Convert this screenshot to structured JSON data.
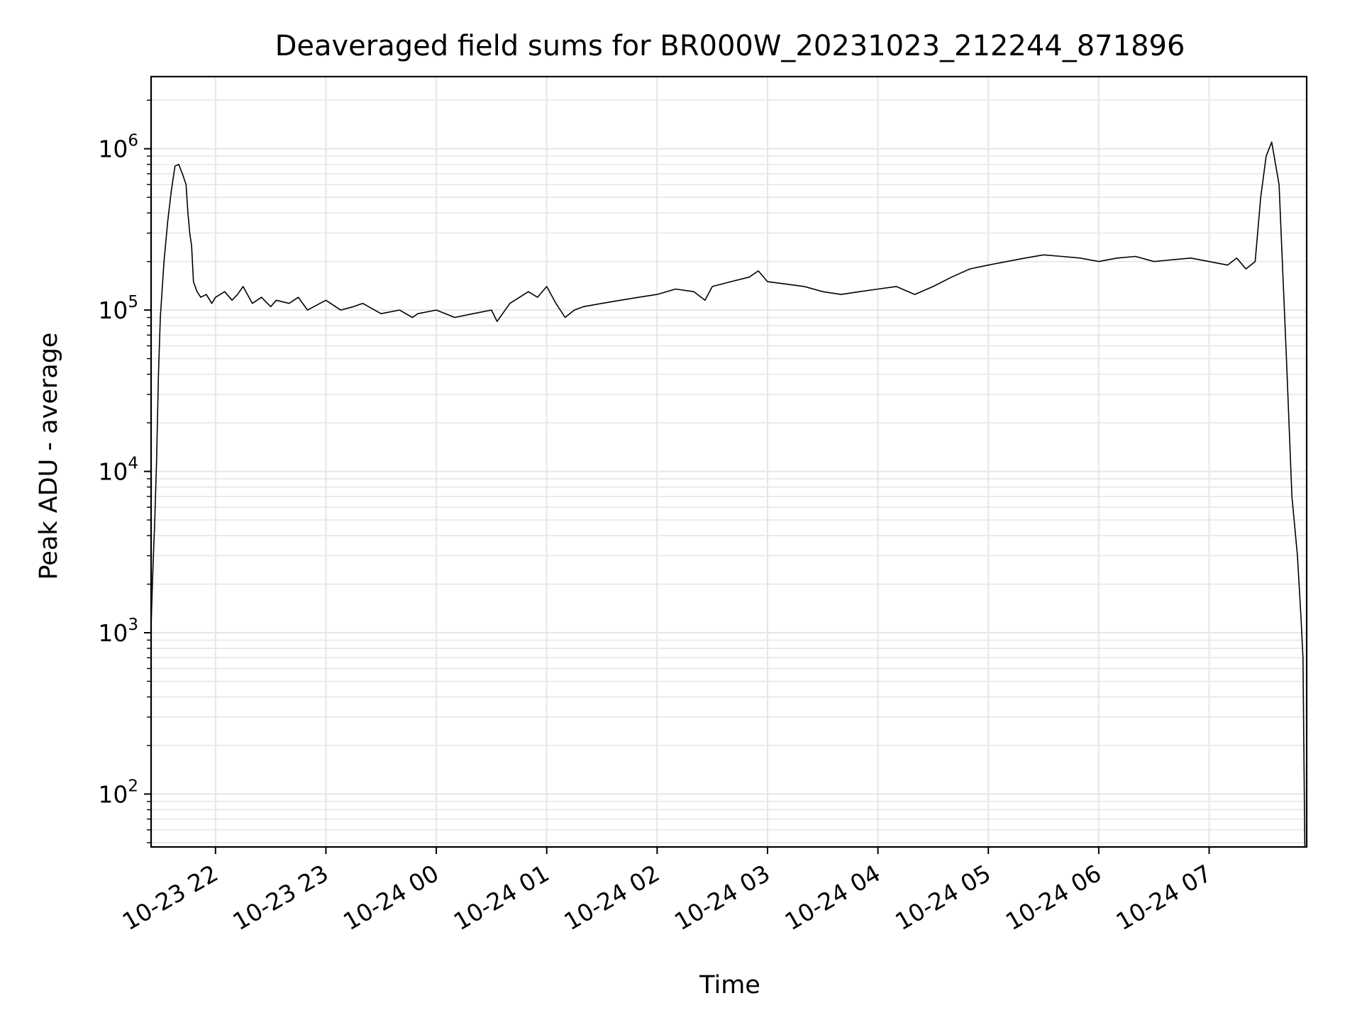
{
  "chart_data": {
    "type": "line",
    "title": "Deaveraged field sums for BR000W_20231023_212244_871896",
    "xlabel": "Time",
    "ylabel": "Peak ADU - average",
    "y_scale": "log",
    "ylim": [
      47,
      2800000
    ],
    "xlim": [
      "2023-10-23 21:25",
      "2023-10-24 07:53"
    ],
    "grid": true,
    "grid_color": "#e6e6e6",
    "line_color": "#000000",
    "x_ticks": [
      {
        "t": "2023-10-23 22:00",
        "label": "10-23 22"
      },
      {
        "t": "2023-10-23 23:00",
        "label": "10-23 23"
      },
      {
        "t": "2023-10-24 00:00",
        "label": "10-24 00"
      },
      {
        "t": "2023-10-24 01:00",
        "label": "10-24 01"
      },
      {
        "t": "2023-10-24 02:00",
        "label": "10-24 02"
      },
      {
        "t": "2023-10-24 03:00",
        "label": "10-24 03"
      },
      {
        "t": "2023-10-24 04:00",
        "label": "10-24 04"
      },
      {
        "t": "2023-10-24 05:00",
        "label": "10-24 05"
      },
      {
        "t": "2023-10-24 06:00",
        "label": "10-24 06"
      },
      {
        "t": "2023-10-24 07:00",
        "label": "10-24 07"
      }
    ],
    "y_ticks": [
      {
        "value": 100,
        "base": "10",
        "exp": "2"
      },
      {
        "value": 1000,
        "base": "10",
        "exp": "3"
      },
      {
        "value": 10000,
        "base": "10",
        "exp": "4"
      },
      {
        "value": 100000,
        "base": "10",
        "exp": "5"
      },
      {
        "value": 1000000,
        "base": "10",
        "exp": "6"
      }
    ],
    "series": [
      {
        "x": [
          "2023-10-23 21:25",
          "2023-10-23 21:26",
          "2023-10-23 21:27",
          "2023-10-23 21:28",
          "2023-10-23 21:29",
          "2023-10-23 21:30",
          "2023-10-23 21:32",
          "2023-10-23 21:34",
          "2023-10-23 21:36",
          "2023-10-23 21:38",
          "2023-10-23 21:40",
          "2023-10-23 21:42",
          "2023-10-23 21:44",
          "2023-10-23 21:45",
          "2023-10-23 21:46",
          "2023-10-23 21:47",
          "2023-10-23 21:48",
          "2023-10-23 21:50",
          "2023-10-23 21:52",
          "2023-10-23 21:55",
          "2023-10-23 21:58",
          "2023-10-23 22:00",
          "2023-10-23 22:05",
          "2023-10-23 22:09",
          "2023-10-23 22:12",
          "2023-10-23 22:15",
          "2023-10-23 22:20",
          "2023-10-23 22:25",
          "2023-10-23 22:30",
          "2023-10-23 22:33",
          "2023-10-23 22:40",
          "2023-10-23 22:45",
          "2023-10-23 22:50",
          "2023-10-23 23:00",
          "2023-10-23 23:08",
          "2023-10-23 23:15",
          "2023-10-23 23:20",
          "2023-10-23 23:30",
          "2023-10-23 23:40",
          "2023-10-23 23:47",
          "2023-10-23 23:50",
          "2023-10-24 00:00",
          "2023-10-24 00:10",
          "2023-10-24 00:20",
          "2023-10-24 00:30",
          "2023-10-24 00:33",
          "2023-10-24 00:40",
          "2023-10-24 00:50",
          "2023-10-24 00:55",
          "2023-10-24 01:00",
          "2023-10-24 01:05",
          "2023-10-24 01:10",
          "2023-10-24 01:15",
          "2023-10-24 01:20",
          "2023-10-24 01:30",
          "2023-10-24 01:40",
          "2023-10-24 01:50",
          "2023-10-24 02:00",
          "2023-10-24 02:10",
          "2023-10-24 02:20",
          "2023-10-24 02:26",
          "2023-10-24 02:30",
          "2023-10-24 02:40",
          "2023-10-24 02:50",
          "2023-10-24 02:55",
          "2023-10-24 03:00",
          "2023-10-24 03:10",
          "2023-10-24 03:20",
          "2023-10-24 03:30",
          "2023-10-24 03:40",
          "2023-10-24 03:50",
          "2023-10-24 04:00",
          "2023-10-24 04:10",
          "2023-10-24 04:20",
          "2023-10-24 04:30",
          "2023-10-24 04:40",
          "2023-10-24 04:50",
          "2023-10-24 05:00",
          "2023-10-24 05:10",
          "2023-10-24 05:20",
          "2023-10-24 05:30",
          "2023-10-24 05:40",
          "2023-10-24 05:50",
          "2023-10-24 06:00",
          "2023-10-24 06:10",
          "2023-10-24 06:20",
          "2023-10-24 06:30",
          "2023-10-24 06:40",
          "2023-10-24 06:50",
          "2023-10-24 07:00",
          "2023-10-24 07:10",
          "2023-10-24 07:15",
          "2023-10-24 07:20",
          "2023-10-24 07:25",
          "2023-10-24 07:28",
          "2023-10-24 07:31",
          "2023-10-24 07:34",
          "2023-10-24 07:38",
          "2023-10-24 07:42",
          "2023-10-24 07:45",
          "2023-10-24 07:48",
          "2023-10-24 07:50",
          "2023-10-24 07:51",
          "2023-10-24 07:52"
        ],
        "y": [
          1100,
          2500,
          5000,
          12000,
          40000,
          90000,
          200000,
          350000,
          550000,
          780000,
          800000,
          700000,
          600000,
          400000,
          300000,
          250000,
          150000,
          130000,
          120000,
          125000,
          110000,
          120000,
          130000,
          115000,
          125000,
          140000,
          110000,
          120000,
          105000,
          115000,
          110000,
          120000,
          100000,
          115000,
          100000,
          105000,
          110000,
          95000,
          100000,
          90000,
          95000,
          100000,
          90000,
          95000,
          100000,
          85000,
          110000,
          130000,
          120000,
          140000,
          110000,
          90000,
          100000,
          105000,
          110000,
          115000,
          120000,
          125000,
          135000,
          130000,
          115000,
          140000,
          150000,
          160000,
          175000,
          150000,
          145000,
          140000,
          130000,
          125000,
          130000,
          135000,
          140000,
          125000,
          140000,
          160000,
          180000,
          190000,
          200000,
          210000,
          220000,
          215000,
          210000,
          200000,
          210000,
          215000,
          200000,
          205000,
          210000,
          200000,
          190000,
          210000,
          180000,
          200000,
          500000,
          900000,
          1100000,
          600000,
          50000,
          7000,
          3000,
          1200,
          700,
          47
        ]
      }
    ]
  }
}
